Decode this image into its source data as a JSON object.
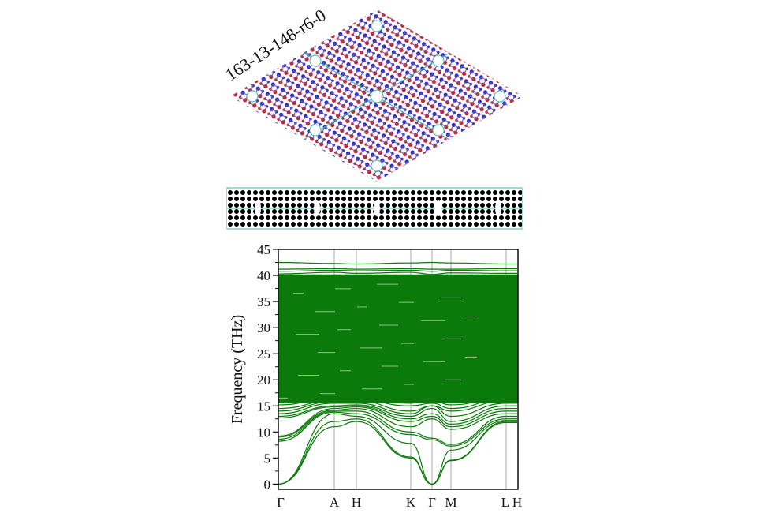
{
  "structure": {
    "label": "163-13-148-r6-0",
    "colors": {
      "atom_a": "#2a2ad0",
      "atom_b": "#d42020",
      "cell": "#3fb8b0"
    }
  },
  "chart_data": {
    "type": "line",
    "title": "",
    "xlabel": "",
    "ylabel": "Frequency (THz)",
    "ylim": [
      -1,
      45
    ],
    "yticks": [
      0,
      5,
      10,
      15,
      20,
      25,
      30,
      35,
      40,
      45
    ],
    "high_symmetry_points": [
      "Γ",
      "A",
      "H",
      "K",
      "Γ",
      "M",
      "L",
      "H"
    ],
    "line_color": "#0a7a0a",
    "grid": "vertical lines at high-symmetry points",
    "dense_band_range": [
      15.5,
      40.2
    ],
    "bands": [
      [
        0,
        11,
        12,
        5,
        0,
        4.5,
        11.8,
        11.8
      ],
      [
        0,
        12,
        12.5,
        5.2,
        0,
        4.6,
        12,
        12
      ],
      [
        0,
        13.5,
        13,
        7.8,
        0,
        6.5,
        12.2,
        12.2
      ],
      [
        8.2,
        13.8,
        13.5,
        9.5,
        8.5,
        7.3,
        12.5,
        12.5
      ],
      [
        8.6,
        14,
        14,
        10,
        8.8,
        7.6,
        13,
        13
      ],
      [
        9,
        14.2,
        14.5,
        11,
        12.5,
        10.5,
        13.5,
        13.5
      ],
      [
        9.2,
        14.5,
        14.8,
        12,
        13,
        11,
        14,
        14
      ],
      [
        12.7,
        14.8,
        15,
        12.5,
        13.5,
        11.5,
        14.5,
        14.5
      ],
      [
        13,
        15,
        15.2,
        13,
        14.5,
        12,
        15,
        15
      ],
      [
        13.5,
        15.5,
        15.5,
        13.5,
        15,
        13,
        15.5,
        15.5
      ],
      [
        14,
        15.8,
        16,
        14,
        15,
        14,
        16,
        16
      ],
      [
        14.5,
        16,
        16.2,
        15,
        15.5,
        14.5,
        16.5,
        16.5
      ],
      [
        15.2,
        16.5,
        16.5,
        15.5,
        16,
        15.2,
        16.8,
        16.8
      ],
      [
        40.3,
        40.6,
        40.4,
        40.6,
        40.2,
        40.5,
        40.4,
        40.4
      ],
      [
        40.8,
        41,
        40.9,
        41,
        40.8,
        41,
        40.9,
        40.9
      ],
      [
        41.2,
        41.3,
        41.2,
        41.3,
        41.2,
        41.2,
        41.3,
        41.3
      ],
      [
        42.5,
        42.3,
        42.2,
        42.4,
        42.5,
        42.4,
        42.2,
        42.2
      ]
    ]
  }
}
